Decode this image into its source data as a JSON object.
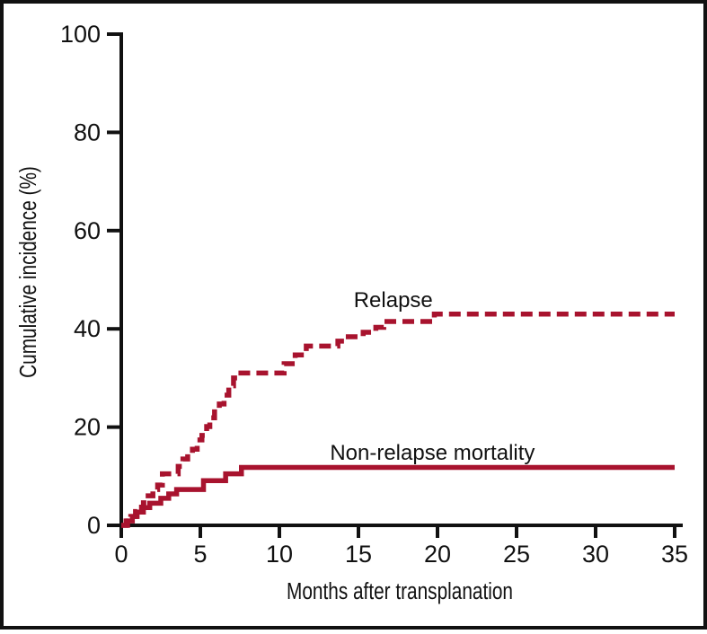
{
  "figure": {
    "background": "#FFFFFF",
    "frame_color": "#111111"
  },
  "chart_data": {
    "type": "line",
    "subtype": "step-after-cumulative-incidence",
    "title": "",
    "xlabel": "Months after transplanation",
    "ylabel": "Cumulative incidence (%)",
    "xlim": [
      0,
      35
    ],
    "ylim": [
      0,
      100
    ],
    "x_ticks": [
      0,
      5,
      10,
      15,
      20,
      25,
      30,
      35
    ],
    "y_ticks": [
      0,
      20,
      40,
      60,
      80,
      100
    ],
    "grid": false,
    "legend_position": "inline-annotations",
    "axis_color": "#111111",
    "accent_color": "#A8132E",
    "series": [
      {
        "name": "Relapse",
        "style": "dashed",
        "color": "#A8132E",
        "points": [
          [
            0,
            0
          ],
          [
            0.3,
            0.9
          ],
          [
            0.6,
            1.8
          ],
          [
            0.9,
            2.8
          ],
          [
            1.1,
            3.7
          ],
          [
            1.4,
            4.6
          ],
          [
            1.7,
            6.0
          ],
          [
            2.0,
            7.3
          ],
          [
            2.3,
            8.2
          ],
          [
            2.6,
            10.5
          ],
          [
            3.6,
            12.0
          ],
          [
            3.9,
            13.5
          ],
          [
            4.2,
            14.6
          ],
          [
            4.5,
            15.5
          ],
          [
            4.8,
            17.4
          ],
          [
            5.1,
            18.3
          ],
          [
            5.4,
            20.1
          ],
          [
            5.6,
            21.9
          ],
          [
            5.9,
            23.8
          ],
          [
            6.2,
            24.7
          ],
          [
            6.5,
            26.5
          ],
          [
            6.8,
            28.4
          ],
          [
            7.1,
            30.0
          ],
          [
            7.4,
            31.0
          ],
          [
            10.3,
            32.9
          ],
          [
            11.0,
            34.7
          ],
          [
            11.7,
            36.5
          ],
          [
            13.7,
            37.5
          ],
          [
            14.2,
            38.4
          ],
          [
            15.3,
            39.3
          ],
          [
            16.1,
            40.3
          ],
          [
            16.6,
            41.5
          ],
          [
            19.8,
            43.0
          ],
          [
            35,
            43.0
          ]
        ]
      },
      {
        "name": "Non-relapse mortality",
        "style": "solid",
        "color": "#A8132E",
        "points": [
          [
            0,
            0
          ],
          [
            0.4,
            0.9
          ],
          [
            0.7,
            1.8
          ],
          [
            1.0,
            2.7
          ],
          [
            1.4,
            3.6
          ],
          [
            1.8,
            4.5
          ],
          [
            2.5,
            5.5
          ],
          [
            3.0,
            6.4
          ],
          [
            3.5,
            7.3
          ],
          [
            5.2,
            9.1
          ],
          [
            6.6,
            10.5
          ],
          [
            7.6,
            11.8
          ],
          [
            35,
            11.8
          ]
        ]
      }
    ],
    "annotations": [
      {
        "text": "Relapse",
        "x_month": 14.7,
        "y_pct": 44.4
      },
      {
        "text": "Non-relapse mortality",
        "x_month": 13.2,
        "y_pct": 13.3
      }
    ]
  }
}
